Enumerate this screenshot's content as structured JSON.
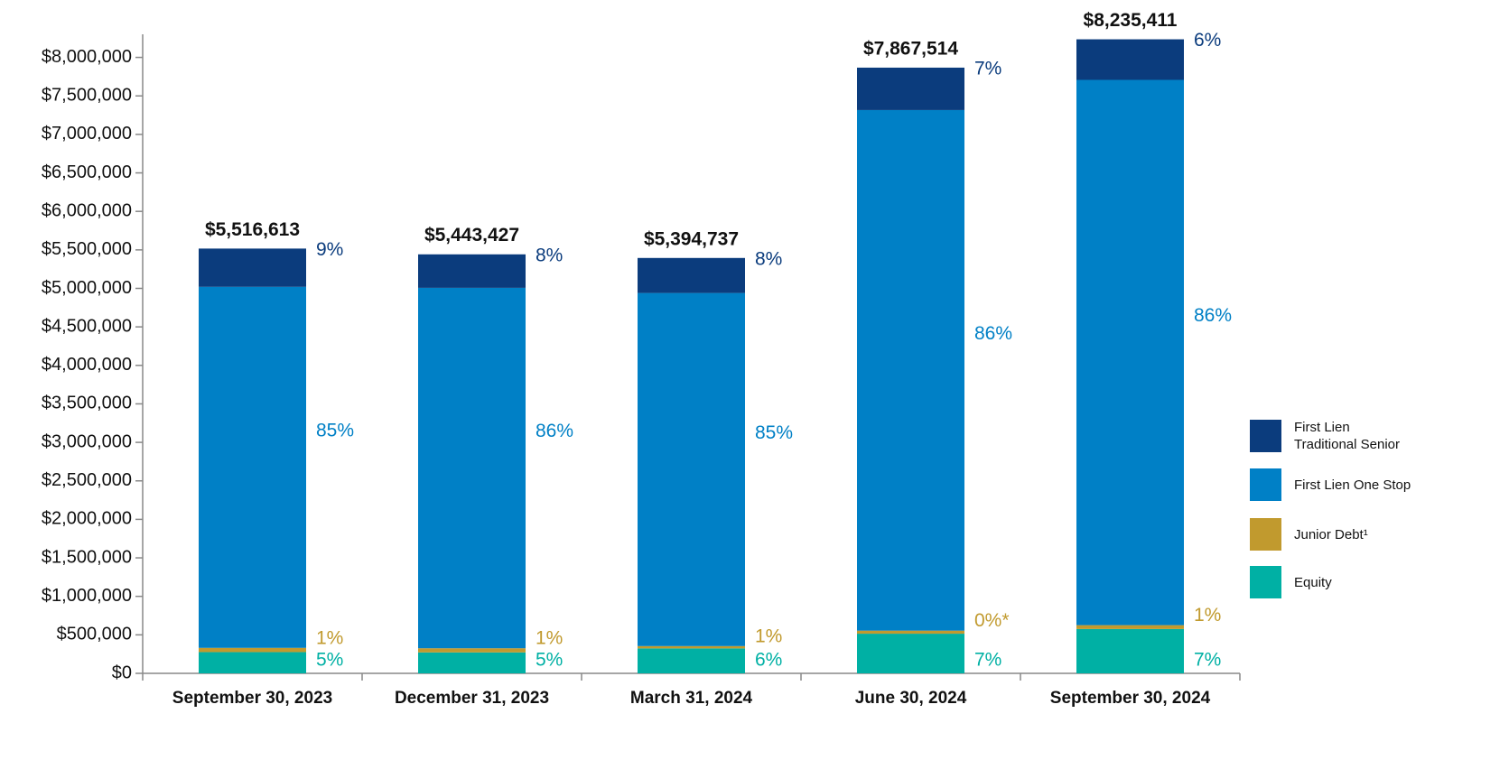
{
  "chart_data": {
    "type": "stacked_bar",
    "categories": [
      "September 30, 2023",
      "December 31, 2023",
      "March 31, 2024",
      "June 30, 2024",
      "September 30, 2024"
    ],
    "series": [
      {
        "name": "Equity",
        "color": "#00b0a4",
        "values": [
          276000,
          272000,
          324000,
          515000,
          576000
        ],
        "percent_labels": [
          "5%",
          "5%",
          "6%",
          "7%",
          "7%"
        ]
      },
      {
        "name": "Junior Debt¹",
        "color": "#c19a2e",
        "values": [
          55000,
          54000,
          30000,
          40000,
          50000
        ],
        "percent_labels": [
          "1%",
          "1%",
          "1%",
          "0%*",
          "1%"
        ]
      },
      {
        "name": "First Lien One Stop",
        "color": "#0080c6",
        "values": [
          4689000,
          4681000,
          4586000,
          6761000,
          7082000
        ],
        "percent_labels": [
          "85%",
          "86%",
          "85%",
          "86%",
          "86%"
        ]
      },
      {
        "name": "First Lien Traditional Senior",
        "color": "#0b3c7d",
        "values": [
          497000,
          435000,
          455000,
          551000,
          527000
        ],
        "percent_labels": [
          "9%",
          "8%",
          "8%",
          "7%",
          "6%"
        ]
      }
    ],
    "totals": [
      5516613,
      5443427,
      5394737,
      7867514,
      8235411
    ],
    "total_labels": [
      "$5,516,613",
      "$5,443,427",
      "$5,394,737",
      "$7,867,514",
      "$8,235,411"
    ],
    "ylim": [
      0,
      8300000
    ],
    "yticks": [
      {
        "value": 0,
        "label": "$0"
      },
      {
        "value": 500000,
        "label": "$500,000"
      },
      {
        "value": 1000000,
        "label": "$1,000,000"
      },
      {
        "value": 1500000,
        "label": "$1,500,000"
      },
      {
        "value": 2000000,
        "label": "$2,000,000"
      },
      {
        "value": 2500000,
        "label": "$2,500,000"
      },
      {
        "value": 3000000,
        "label": "$3,000,000"
      },
      {
        "value": 3500000,
        "label": "$3,500,000"
      },
      {
        "value": 4000000,
        "label": "$4,000,000"
      },
      {
        "value": 4500000,
        "label": "$4,500,000"
      },
      {
        "value": 5000000,
        "label": "$5,000,000"
      },
      {
        "value": 5500000,
        "label": "$5,500,000"
      },
      {
        "value": 6000000,
        "label": "$6,000,000"
      },
      {
        "value": 6500000,
        "label": "$6,500,000"
      },
      {
        "value": 7000000,
        "label": "$7,000,000"
      },
      {
        "value": 7500000,
        "label": "$7,500,000"
      },
      {
        "value": 8000000,
        "label": "$8,000,000"
      }
    ],
    "legend": "right"
  }
}
